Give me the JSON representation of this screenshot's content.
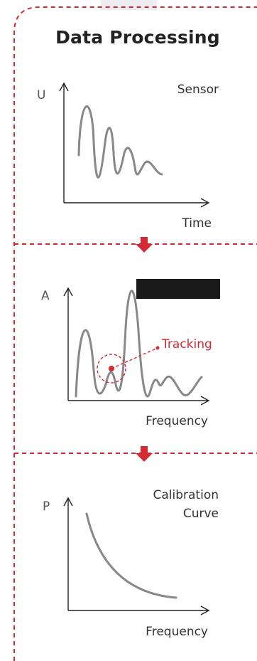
{
  "title": "Data Processing",
  "panels": [
    {
      "y_axis_label": "U",
      "x_axis_label": "Time",
      "name": "Sensor"
    },
    {
      "y_axis_label": "A",
      "x_axis_label": "Frequency",
      "annotation": "Tracking"
    },
    {
      "y_axis_label": "P",
      "x_axis_label": "Frequency",
      "name_line1": "Calibration",
      "name_line2": "Curve"
    }
  ],
  "colors": {
    "accent": "#d32a33",
    "curve": "#888888",
    "axis": "#222222"
  }
}
